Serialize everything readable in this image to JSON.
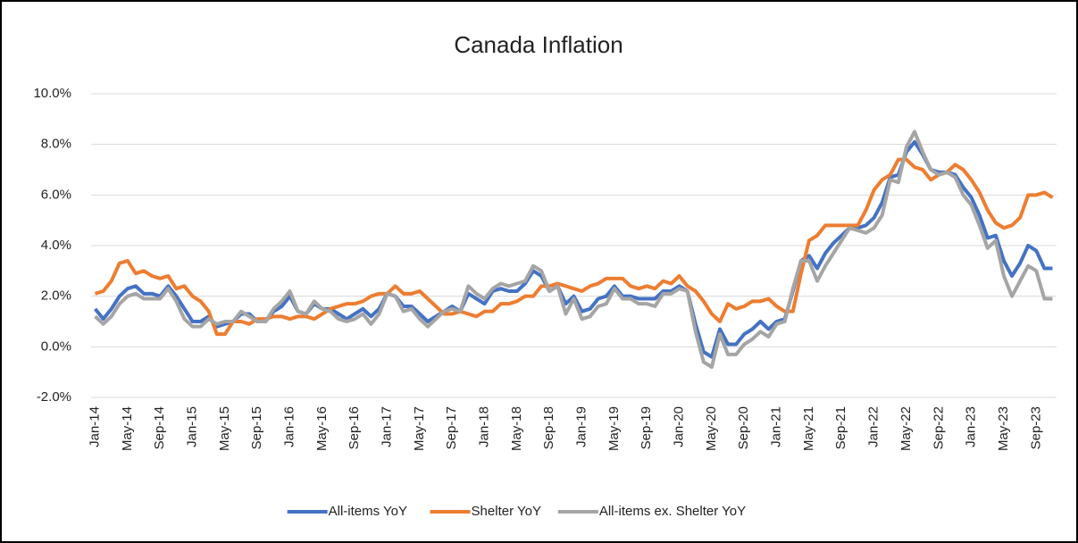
{
  "chart_data": {
    "type": "line",
    "title": "Canada Inflation",
    "categories": [
      "Jan-14",
      null,
      null,
      null,
      "May-14",
      null,
      null,
      null,
      "Sep-14",
      null,
      null,
      null,
      "Jan-15",
      null,
      null,
      null,
      "May-15",
      null,
      null,
      null,
      "Sep-15",
      null,
      null,
      null,
      "Jan-16",
      null,
      null,
      null,
      "May-16",
      null,
      null,
      null,
      "Sep-16",
      null,
      null,
      null,
      "Jan-17",
      null,
      null,
      null,
      "May-17",
      null,
      null,
      null,
      "Sep-17",
      null,
      null,
      null,
      "Jan-18",
      null,
      null,
      null,
      "May-18",
      null,
      null,
      null,
      "Sep-18",
      null,
      null,
      null,
      "Jan-19",
      null,
      null,
      null,
      "May-19",
      null,
      null,
      null,
      "Sep-19",
      null,
      null,
      null,
      "Jan-20",
      null,
      null,
      null,
      "May-20",
      null,
      null,
      null,
      "Sep-20",
      null,
      null,
      null,
      "Jan-21",
      null,
      null,
      null,
      "May-21",
      null,
      null,
      null,
      "Sep-21",
      null,
      null,
      null,
      "Jan-22",
      null,
      null,
      null,
      "May-22",
      null,
      null,
      null,
      "Sep-22",
      null,
      null,
      null,
      "Jan-23",
      null,
      null,
      null,
      "May-23",
      null,
      null,
      null,
      "Sep-23",
      null,
      null
    ],
    "series": [
      {
        "name": "All-items YoY",
        "color": "#4472c4",
        "values": [
          1.5,
          1.1,
          1.5,
          2.0,
          2.3,
          2.4,
          2.1,
          2.1,
          2.0,
          2.4,
          2.0,
          1.5,
          1.0,
          1.0,
          1.2,
          0.8,
          0.9,
          1.0,
          1.3,
          1.3,
          1.0,
          1.0,
          1.4,
          1.6,
          2.0,
          1.4,
          1.3,
          1.7,
          1.5,
          1.5,
          1.3,
          1.1,
          1.3,
          1.5,
          1.2,
          1.5,
          2.1,
          2.0,
          1.6,
          1.6,
          1.3,
          1.0,
          1.2,
          1.4,
          1.6,
          1.4,
          2.1,
          1.9,
          1.7,
          2.2,
          2.3,
          2.2,
          2.2,
          2.5,
          3.0,
          2.8,
          2.2,
          2.4,
          1.7,
          2.0,
          1.4,
          1.5,
          1.9,
          2.0,
          2.4,
          2.0,
          2.0,
          1.9,
          1.9,
          1.9,
          2.2,
          2.2,
          2.4,
          2.2,
          0.9,
          -0.2,
          -0.4,
          0.7,
          0.1,
          0.1,
          0.5,
          0.7,
          1.0,
          0.7,
          1.0,
          1.1,
          2.2,
          3.4,
          3.6,
          3.1,
          3.7,
          4.1,
          4.4,
          4.7,
          4.7,
          4.8,
          5.1,
          5.7,
          6.7,
          6.8,
          7.7,
          8.1,
          7.6,
          7.0,
          6.9,
          6.9,
          6.8,
          6.3,
          5.9,
          5.2,
          4.3,
          4.4,
          3.4,
          2.8,
          3.3,
          4.0,
          3.8,
          3.1,
          3.1
        ]
      },
      {
        "name": "Shelter YoY",
        "color": "#ed7d31",
        "values": [
          2.1,
          2.2,
          2.6,
          3.3,
          3.4,
          2.9,
          3.0,
          2.8,
          2.7,
          2.8,
          2.3,
          2.4,
          2.0,
          1.8,
          1.4,
          0.5,
          0.5,
          1.0,
          1.0,
          0.9,
          1.1,
          1.1,
          1.2,
          1.2,
          1.1,
          1.2,
          1.2,
          1.1,
          1.3,
          1.5,
          1.6,
          1.7,
          1.7,
          1.8,
          2.0,
          2.1,
          2.1,
          2.4,
          2.1,
          2.1,
          2.2,
          1.9,
          1.6,
          1.3,
          1.3,
          1.4,
          1.3,
          1.2,
          1.4,
          1.4,
          1.7,
          1.7,
          1.8,
          2.0,
          2.0,
          2.4,
          2.4,
          2.5,
          2.4,
          2.3,
          2.2,
          2.4,
          2.5,
          2.7,
          2.7,
          2.7,
          2.4,
          2.3,
          2.4,
          2.3,
          2.6,
          2.5,
          2.8,
          2.4,
          2.2,
          1.8,
          1.3,
          1.0,
          1.7,
          1.5,
          1.6,
          1.8,
          1.8,
          1.9,
          1.6,
          1.4,
          1.4,
          2.9,
          4.2,
          4.4,
          4.8,
          4.8,
          4.8,
          4.8,
          4.8,
          5.4,
          6.2,
          6.6,
          6.8,
          7.4,
          7.4,
          7.1,
          7.0,
          6.6,
          6.8,
          6.9,
          7.2,
          7.0,
          6.6,
          6.1,
          5.4,
          4.9,
          4.7,
          4.8,
          5.1,
          6.0,
          6.0,
          6.1,
          5.9
        ]
      },
      {
        "name": "All-items ex. Shelter YoY",
        "color": "#a5a5a5",
        "values": [
          1.2,
          0.9,
          1.2,
          1.7,
          2.0,
          2.1,
          1.9,
          1.9,
          1.9,
          2.3,
          1.8,
          1.1,
          0.8,
          0.8,
          1.1,
          0.9,
          1.0,
          1.0,
          1.4,
          1.2,
          1.0,
          1.0,
          1.5,
          1.8,
          2.2,
          1.4,
          1.3,
          1.8,
          1.5,
          1.4,
          1.1,
          1.0,
          1.1,
          1.3,
          0.9,
          1.3,
          2.1,
          2.0,
          1.4,
          1.5,
          1.1,
          0.8,
          1.1,
          1.4,
          1.5,
          1.4,
          2.4,
          2.1,
          1.9,
          2.3,
          2.5,
          2.4,
          2.5,
          2.6,
          3.2,
          3.0,
          2.2,
          2.4,
          1.3,
          1.9,
          1.1,
          1.2,
          1.6,
          1.7,
          2.3,
          1.9,
          1.9,
          1.7,
          1.7,
          1.6,
          2.1,
          2.1,
          2.3,
          2.2,
          0.6,
          -0.6,
          -0.8,
          0.5,
          -0.3,
          -0.3,
          0.1,
          0.3,
          0.6,
          0.4,
          0.9,
          1.0,
          2.3,
          3.4,
          3.4,
          2.6,
          3.2,
          3.7,
          4.2,
          4.7,
          4.6,
          4.5,
          4.7,
          5.2,
          6.6,
          6.5,
          7.9,
          8.5,
          7.7,
          7.0,
          6.8,
          6.9,
          6.7,
          6.0,
          5.6,
          4.8,
          3.9,
          4.2,
          2.8,
          2.0,
          2.6,
          3.2,
          3.0,
          1.9,
          1.9
        ]
      }
    ],
    "ylim": [
      -2,
      10
    ],
    "yticks": [
      {
        "value": -2,
        "label": "-2.0%"
      },
      {
        "value": 0,
        "label": "0.0%"
      },
      {
        "value": 2,
        "label": "2.0%"
      },
      {
        "value": 4,
        "label": "4.0%"
      },
      {
        "value": 6,
        "label": "6.0%"
      },
      {
        "value": 8,
        "label": "8.0%"
      },
      {
        "value": 10,
        "label": "10.0%"
      }
    ],
    "grid": true,
    "legend": "bottom"
  }
}
